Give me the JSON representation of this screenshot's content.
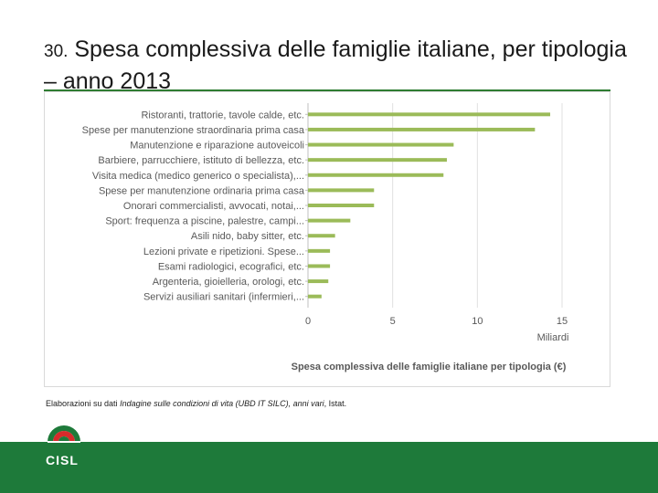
{
  "header": {
    "number": "30.",
    "title": "Spesa complessiva delle famiglie italiane, per tipologia – anno 2013"
  },
  "chart_data": {
    "type": "bar",
    "orientation": "horizontal",
    "title": "Spesa complessiva delle famiglie italiane per tipologia (€)",
    "xlabel": "Miliardi",
    "xlim": [
      0,
      15
    ],
    "xticks": [
      0,
      5,
      10,
      15
    ],
    "grid": true,
    "bar_color": "#9bbb59",
    "categories": [
      "Ristoranti, trattorie, tavole calde, etc.",
      "Spese per manutenzione straordinaria prima casa",
      "Manutenzione e riparazione autoveicoli",
      "Barbiere, parrucchiere, istituto di bellezza, etc.",
      "Visita medica (medico generico o specialista),...",
      "Spese per manutenzione ordinaria prima casa",
      "Onorari commercialisti, avvocati, notai,...",
      "Sport: frequenza a piscine, palestre, campi...",
      "Asili nido, baby sitter, etc.",
      "Lezioni private e ripetizioni. Spese...",
      "Esami radiologici, ecografici, etc.",
      "Argenteria, gioielleria, orologi, etc.",
      "Servizi ausiliari sanitari (infermieri,..."
    ],
    "values": [
      14.3,
      13.4,
      8.6,
      8.2,
      8.0,
      3.9,
      3.9,
      2.5,
      1.6,
      1.3,
      1.3,
      1.2,
      0.8
    ]
  },
  "note": {
    "prefix": "Elaborazioni su dati ",
    "source": "Indagine sulle condizioni di vita (UBD IT SILC), anni vari",
    "suffix": ", Istat."
  },
  "logo": {
    "text": "CISL",
    "colors": {
      "green": "#1e7a3a",
      "red": "#d62b2b"
    }
  }
}
